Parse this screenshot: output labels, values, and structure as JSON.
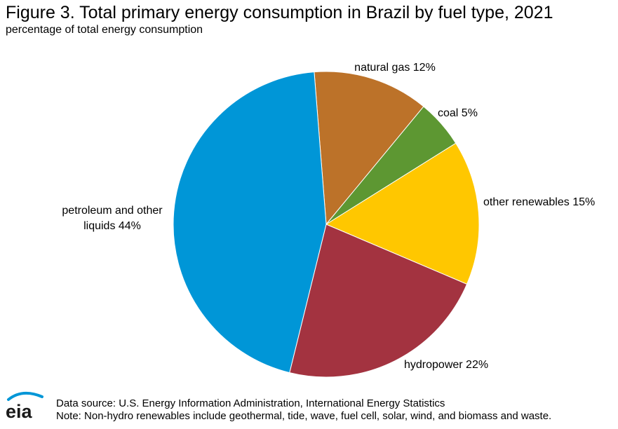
{
  "chart_data": {
    "type": "pie",
    "title": "Figure 3. Total primary energy consumption in Brazil by fuel type, 2021",
    "subtitle": "percentage of total energy consumption",
    "slices": [
      {
        "name": "natural gas",
        "value": 12,
        "label": "natural gas 12%",
        "color": "#bc7229"
      },
      {
        "name": "coal",
        "value": 5,
        "label": "coal 5%",
        "color": "#5d9732"
      },
      {
        "name": "other renewables",
        "value": 15,
        "label": "other renewables 15%",
        "color": "#ffc700"
      },
      {
        "name": "hydropower",
        "value": 22,
        "label": "hydropower 22%",
        "color": "#a33340"
      },
      {
        "name": "petroleum and other liquids",
        "value": 44,
        "label": "petroleum and other liquids 44%",
        "label_lines": [
          "petroleum and other",
          "liquids 44%"
        ],
        "color": "#0096d7"
      }
    ]
  },
  "footer": {
    "source": "Data source: U.S. Energy Information Administration, International Energy Statistics",
    "note": "Note: Non-hydro renewables include geothermal, tide, wave, fuel cell, solar, wind, and biomass and waste."
  },
  "logo": {
    "text": "eia"
  }
}
